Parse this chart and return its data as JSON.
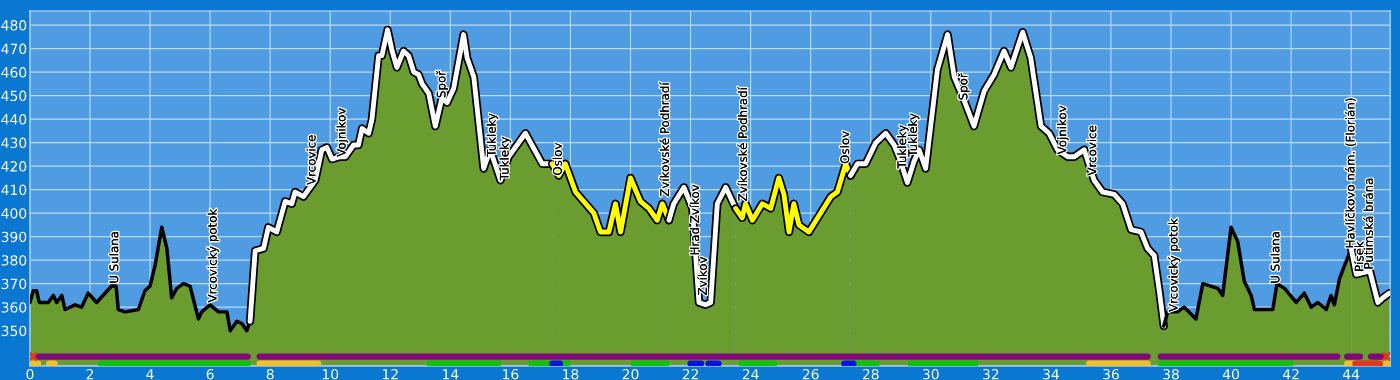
{
  "chart_data": {
    "type": "area",
    "series": [
      {
        "color": "#000000",
        "x": [
          0,
          0.11,
          0.22,
          0.31,
          0.61,
          0.78,
          0.89,
          1.06,
          1.17,
          1.5,
          1.72,
          1.94,
          2.22,
          2.72,
          2.87,
          2.94,
          3.17,
          3.61,
          3.83,
          4.0,
          4.17,
          4.39,
          4.56,
          4.72,
          4.89,
          5.11,
          5.33,
          5.61,
          5.72,
          6.0,
          6.28,
          6.56,
          6.67,
          6.89,
          7.06,
          7.22,
          7.33
        ],
        "values": [
          362,
          367,
          367,
          362,
          362,
          365,
          362,
          365,
          359,
          361,
          360,
          366,
          362,
          369,
          369,
          359,
          358,
          359,
          367,
          369,
          378,
          394,
          385,
          364,
          368,
          370,
          369,
          355,
          358,
          361,
          358,
          358,
          350,
          354,
          353,
          350,
          354
        ]
      },
      {
        "color": "#ffffff",
        "x": [
          7.33,
          7.5,
          7.78,
          7.94,
          8.22,
          8.5,
          8.72,
          8.83,
          9.11,
          9.5,
          9.72,
          9.89,
          10.06,
          10.33,
          10.5,
          10.78,
          10.94,
          11.06,
          11.28,
          11.39,
          11.61,
          11.72,
          11.91,
          12.06,
          12.22,
          12.44,
          12.61,
          12.78,
          12.94,
          13.06,
          13.28,
          13.5,
          13.72,
          13.89,
          14.11,
          14.44,
          14.56,
          14.78,
          15.11,
          15.33,
          15.67,
          15.94,
          16.5,
          17.06,
          17.39
        ],
        "values": [
          354,
          384,
          385,
          394,
          392,
          405,
          404,
          409,
          407,
          414,
          427,
          428,
          423,
          424,
          424,
          429,
          429,
          436,
          434,
          440,
          467,
          467,
          478,
          469,
          462,
          469,
          467,
          460,
          459,
          455,
          451,
          437,
          449,
          447,
          453,
          476,
          466,
          458,
          419,
          427,
          414,
          424,
          434,
          421,
          421
        ]
      },
      {
        "color": "#ffff00",
        "x": [
          17.39,
          17.61,
          17.83,
          18.17,
          18.78,
          19.0,
          19.28,
          19.5,
          19.67,
          20.0,
          20.33,
          20.61,
          20.89,
          21.06,
          21.28
        ],
        "values": [
          421,
          416,
          421,
          409,
          400,
          392,
          392,
          404,
          392,
          415,
          405,
          402,
          397,
          404,
          397
        ]
      },
      {
        "color": "#ffffff",
        "x": [
          21.28,
          21.44,
          21.78,
          22.06,
          22.28,
          22.5,
          22.67,
          22.89,
          23.17,
          23.5
        ],
        "values": [
          397,
          404,
          411,
          402,
          362,
          361,
          362,
          404,
          411,
          402
        ]
      },
      {
        "color": "#ffff00",
        "x": [
          23.5,
          23.72,
          23.83,
          24.06,
          24.39,
          24.67,
          24.94,
          25.11,
          25.28,
          25.44,
          25.61,
          25.94,
          26.67,
          26.89,
          27.17,
          27.33
        ],
        "values": [
          402,
          398,
          404,
          397,
          404,
          402,
          415,
          408,
          392,
          404,
          395,
          392,
          407,
          409,
          421,
          416
        ]
      },
      {
        "color": "#ffffff",
        "x": [
          27.33,
          27.56,
          27.83,
          28.17,
          28.5,
          28.78,
          28.94,
          29.22,
          29.44,
          29.61,
          29.83,
          30.22,
          30.56,
          30.78,
          31.11,
          31.44,
          31.78,
          32.11,
          32.44,
          32.67,
          33.06,
          33.33,
          33.67,
          33.94,
          34.22,
          34.56,
          34.78,
          35.11,
          35.44,
          35.72,
          36.11,
          36.39,
          36.67,
          37.0,
          37.22,
          37.44,
          37.61,
          37.76
        ],
        "values": [
          416,
          421,
          421,
          430,
          434,
          429,
          424,
          413,
          422,
          427,
          419,
          461,
          476,
          458,
          448,
          437,
          452,
          459,
          469,
          462,
          477,
          466,
          437,
          434,
          427,
          424,
          424,
          427,
          414,
          409,
          408,
          404,
          393,
          392,
          385,
          382,
          367,
          352
        ]
      },
      {
        "color": "#000000",
        "x": [
          37.76,
          37.89,
          38.22,
          38.44,
          38.83,
          39.06,
          39.56,
          39.72,
          40.0,
          40.22,
          40.44,
          40.67,
          40.78,
          41.39,
          41.53,
          41.78,
          42.17,
          42.44,
          42.67,
          42.89,
          43.17,
          43.33,
          43.44,
          43.61,
          44.0
        ],
        "values": [
          352,
          358,
          358,
          360,
          355,
          370,
          368,
          365,
          394,
          388,
          371,
          365,
          359,
          359,
          370,
          368,
          362,
          366,
          360,
          362,
          359,
          365,
          361,
          372,
          385
        ]
      },
      {
        "color": "#ffffff",
        "x": [
          44.0,
          44.17,
          44.5,
          44.61,
          44.89,
          45.06,
          45.28
        ],
        "values": [
          385,
          374,
          375,
          376,
          362,
          364,
          366
        ]
      },
      {
        "type": "line",
        "color": "#800878",
        "x": [
          0.2,
          7.25
        ],
        "values": [
          339,
          339
        ]
      },
      {
        "type": "line",
        "color": "#800878",
        "x": [
          7.65,
          37.22
        ],
        "values": [
          339,
          339
        ]
      },
      {
        "type": "line",
        "color": "#800878",
        "x": [
          37.66,
          43.54
        ],
        "values": [
          339,
          339
        ]
      },
      {
        "type": "line",
        "color": "#800878",
        "x": [
          43.87,
          44.29
        ],
        "values": [
          339,
          339
        ]
      },
      {
        "type": "line",
        "color": "#800878",
        "x": [
          44.66,
          45.1
        ],
        "values": [
          339,
          339
        ]
      },
      {
        "type": "line",
        "color": "#12c012",
        "x": [
          2.36,
          7.25
        ],
        "values": [
          336,
          336
        ]
      },
      {
        "type": "line",
        "color": "#12c012",
        "x": [
          13.3,
          15.6
        ],
        "values": [
          336,
          336
        ]
      },
      {
        "type": "line",
        "color": "#12c012",
        "x": [
          16.7,
          17.3
        ],
        "values": [
          336,
          336
        ]
      },
      {
        "type": "line",
        "color": "#12c012",
        "x": [
          17.65,
          17.9
        ],
        "values": [
          336,
          336
        ]
      },
      {
        "type": "line",
        "color": "#12c012",
        "x": [
          20.1,
          21.2
        ],
        "values": [
          336,
          336
        ]
      },
      {
        "type": "line",
        "color": "#12c012",
        "x": [
          23.7,
          24.8
        ],
        "values": [
          336,
          336
        ]
      },
      {
        "type": "line",
        "color": "#12c012",
        "x": [
          27.42,
          28.2
        ],
        "values": [
          336,
          336
        ]
      },
      {
        "type": "line",
        "color": "#12c012",
        "x": [
          29.33,
          31.49
        ],
        "values": [
          336,
          336
        ]
      },
      {
        "type": "line",
        "color": "#12c012",
        "x": [
          37.66,
          41.98
        ],
        "values": [
          336,
          336
        ]
      },
      {
        "type": "line",
        "color": "#f0c030",
        "x": [
          0.05,
          0.27
        ],
        "values": [
          336,
          336
        ]
      },
      {
        "type": "line",
        "color": "#f0c030",
        "x": [
          0.64,
          0.82
        ],
        "values": [
          336,
          336
        ]
      },
      {
        "type": "line",
        "color": "#f0c030",
        "x": [
          7.65,
          9.6
        ],
        "values": [
          336,
          336
        ]
      },
      {
        "type": "line",
        "color": "#f0c030",
        "x": [
          35.28,
          37.22
        ],
        "values": [
          336,
          336
        ]
      },
      {
        "type": "line",
        "color": "#f0c030",
        "x": [
          43.87,
          44.14
        ],
        "values": [
          336,
          336
        ]
      },
      {
        "type": "line",
        "color": "#f0c030",
        "x": [
          44.96,
          45.25
        ],
        "values": [
          336,
          336
        ]
      },
      {
        "type": "line",
        "color": "#0a14e0",
        "x": [
          17.4,
          17.65
        ],
        "values": [
          336,
          336
        ]
      },
      {
        "type": "line",
        "color": "#0a14e0",
        "x": [
          22.0,
          22.35
        ],
        "values": [
          336,
          336
        ]
      },
      {
        "type": "line",
        "color": "#0a14e0",
        "x": [
          22.6,
          22.93
        ],
        "values": [
          336,
          336
        ]
      },
      {
        "type": "line",
        "color": "#0a14e0",
        "x": [
          27.12,
          27.42
        ],
        "values": [
          336,
          336
        ]
      },
      {
        "type": "line",
        "color": "#e03820",
        "x": [
          44.14,
          44.96
        ],
        "values": [
          336,
          336
        ]
      },
      {
        "type": "scatter",
        "color": "#e03820",
        "marker": "cross",
        "x": [
          0.1,
          45.18
        ],
        "values": [
          339,
          339
        ]
      }
    ],
    "annotations": [
      {
        "text": "U Sulana",
        "x": 2.83,
        "y": 370
      },
      {
        "text": "Vrcovický potok",
        "x": 6.1,
        "y": 362
      },
      {
        "text": "Vrcovice",
        "x": 9.4,
        "y": 412
      },
      {
        "text": "Vojnikov",
        "x": 10.4,
        "y": 424
      },
      {
        "text": "Spoř",
        "x": 13.72,
        "y": 449
      },
      {
        "text": "Tukleky",
        "x": 15.4,
        "y": 424
      },
      {
        "text": "Tukleky",
        "x": 15.83,
        "y": 414
      },
      {
        "text": "Oslov",
        "x": 17.6,
        "y": 416
      },
      {
        "text": "Zvíkovské Podhradí",
        "x": 21.17,
        "y": 407
      },
      {
        "text": "Hrad Zvíkov",
        "x": 22.17,
        "y": 382
      },
      {
        "text": "Zvíkov",
        "x": 22.43,
        "y": 365
      },
      {
        "text": "Zvíkovské Podhradí",
        "x": 23.77,
        "y": 405
      },
      {
        "text": "Oslov",
        "x": 27.17,
        "y": 421
      },
      {
        "text": "Tukleky",
        "x": 29.07,
        "y": 419
      },
      {
        "text": "Tukleky",
        "x": 29.43,
        "y": 424
      },
      {
        "text": "Spoř",
        "x": 31.1,
        "y": 448
      },
      {
        "text": "Vojnikov",
        "x": 34.4,
        "y": 425
      },
      {
        "text": "Vrcovice",
        "x": 35.4,
        "y": 416
      },
      {
        "text": "Vrcovický potok",
        "x": 38.1,
        "y": 358
      },
      {
        "text": "U Sulana",
        "x": 41.5,
        "y": 370
      },
      {
        "text": "Havlíčkovo nám. (Florián)",
        "x": 44.0,
        "y": 385
      },
      {
        "text": "Písek",
        "x": 44.3,
        "y": 375
      },
      {
        "text": "Putimská brána",
        "x": 44.61,
        "y": 376
      }
    ],
    "xlim": [
      0,
      45.3
    ],
    "ylim": [
      335,
      486
    ],
    "xticks": [
      0,
      2,
      4,
      6,
      8,
      10,
      12,
      14,
      16,
      18,
      20,
      22,
      24,
      26,
      28,
      30,
      32,
      34,
      36,
      38,
      40,
      42,
      44
    ],
    "yticks": [
      350,
      360,
      370,
      380,
      390,
      400,
      410,
      420,
      430,
      440,
      450,
      460,
      470,
      480
    ],
    "grid": true
  }
}
